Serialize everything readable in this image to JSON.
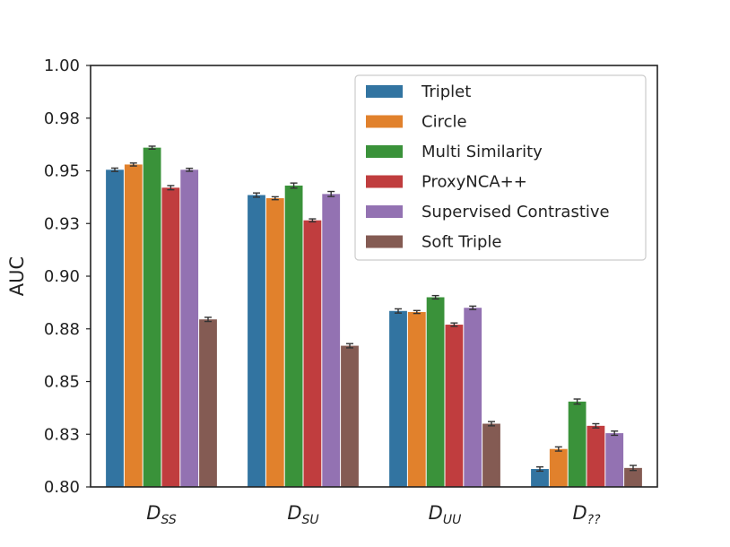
{
  "chart_data": {
    "type": "bar",
    "ylabel": "AUC",
    "xlabel": "",
    "ylim": [
      0.8,
      1.0
    ],
    "yticks": [
      0.8,
      0.825,
      0.85,
      0.875,
      0.9,
      0.925,
      0.95,
      0.975,
      1.0
    ],
    "ytick_labels": [
      "0.80",
      "0.83",
      "0.85",
      "0.88",
      "0.90",
      "0.93",
      "0.95",
      "0.98",
      "1.00"
    ],
    "categories": [
      {
        "base": "D",
        "sub": "SS"
      },
      {
        "base": "D",
        "sub": "SU"
      },
      {
        "base": "D",
        "sub": "UU"
      },
      {
        "base": "D",
        "sub": "??"
      }
    ],
    "legend_position": "top-right",
    "series": [
      {
        "name": "Triplet",
        "color": "#3274a1",
        "values": [
          0.9505,
          0.9385,
          0.8835,
          0.8085
        ],
        "errors": [
          0.0008,
          0.001,
          0.001,
          0.001
        ]
      },
      {
        "name": "Circle",
        "color": "#e1812c",
        "values": [
          0.953,
          0.937,
          0.883,
          0.818
        ],
        "errors": [
          0.0007,
          0.0007,
          0.0007,
          0.001
        ]
      },
      {
        "name": "Multi Similarity",
        "color": "#3a923a",
        "values": [
          0.961,
          0.943,
          0.89,
          0.8405
        ],
        "errors": [
          0.0007,
          0.0012,
          0.0008,
          0.0012
        ]
      },
      {
        "name": "ProxyNCA++",
        "color": "#c03d3e",
        "values": [
          0.942,
          0.9265,
          0.877,
          0.829
        ],
        "errors": [
          0.001,
          0.0007,
          0.0008,
          0.001
        ]
      },
      {
        "name": "Supervised Contrastive",
        "color": "#9372b2",
        "values": [
          0.9505,
          0.939,
          0.885,
          0.8255
        ],
        "errors": [
          0.0007,
          0.0012,
          0.0008,
          0.001
        ]
      },
      {
        "name": "Soft Triple",
        "color": "#845b53",
        "values": [
          0.8795,
          0.867,
          0.83,
          0.809
        ],
        "errors": [
          0.001,
          0.001,
          0.001,
          0.0012
        ]
      }
    ]
  }
}
